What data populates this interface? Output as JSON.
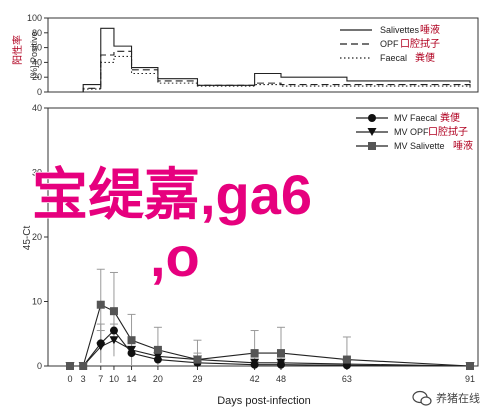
{
  "chart_data": [
    {
      "type": "line",
      "panel": "top",
      "ylabel": "[%] Positive",
      "ylabel_annotation": "阳性率",
      "ylim": [
        0,
        100
      ],
      "yticks": [
        "0",
        "20",
        "40",
        "60",
        "80",
        "100"
      ],
      "x": [
        0,
        3,
        7,
        10,
        14,
        20,
        29,
        42,
        48,
        63,
        91
      ],
      "legend_position": "top-right",
      "series": [
        {
          "name": "Salivettes",
          "annotation": "唾液",
          "style": "solid",
          "values": [
            0,
            10,
            86,
            62,
            33,
            18,
            9,
            25,
            20,
            15,
            12
          ]
        },
        {
          "name": "OPF",
          "annotation": "口腔拭子",
          "style": "dashed",
          "values": [
            0,
            5,
            50,
            55,
            30,
            15,
            9,
            12,
            10,
            10,
            8
          ]
        },
        {
          "name": "Faecal",
          "annotation": "粪便",
          "style": "dotted",
          "values": [
            0,
            4,
            40,
            48,
            25,
            12,
            8,
            10,
            8,
            8,
            5
          ]
        }
      ]
    },
    {
      "type": "line",
      "panel": "bottom",
      "ylabel": "45-Ct",
      "xlabel": "Days post-infection",
      "ylim": [
        0,
        40
      ],
      "yticks": [
        "0",
        "10",
        "20",
        "30",
        "40"
      ],
      "xticks": [
        "0",
        "3",
        "7",
        "10",
        "14",
        "20",
        "29",
        "42",
        "48",
        "63",
        "91"
      ],
      "x": [
        0,
        3,
        7,
        10,
        14,
        20,
        29,
        42,
        48,
        63,
        91
      ],
      "legend_position": "top-right",
      "series": [
        {
          "name": "MV Faecal",
          "annotation": "粪便",
          "marker": "circle",
          "values": [
            0,
            0,
            3.5,
            5.5,
            2,
            1,
            0.5,
            0.2,
            0.2,
            0.1,
            0
          ],
          "errors": [
            0,
            0,
            3,
            3,
            2,
            1,
            0.5,
            0.5,
            0.5,
            0.3,
            0
          ]
        },
        {
          "name": "MV OPF",
          "annotation": "口腔拭子",
          "marker": "triangle-down",
          "values": [
            0,
            0,
            3,
            4,
            2.5,
            1.5,
            1,
            0.5,
            0.5,
            0.3,
            0
          ],
          "errors": [
            0,
            0,
            2.5,
            2.5,
            2,
            1.2,
            1,
            0.8,
            0.8,
            0.5,
            0
          ]
        },
        {
          "name": "MV Salivette",
          "annotation": "唾液",
          "marker": "square",
          "values": [
            0,
            0,
            9.5,
            8.5,
            4,
            2.5,
            1,
            2,
            2,
            1,
            0
          ],
          "errors": [
            0,
            0,
            5.5,
            6,
            4,
            3.5,
            3,
            3.5,
            4,
            3.5,
            0
          ]
        }
      ]
    }
  ],
  "overlay": {
    "line1": "宝缇嘉,ga6",
    "line2": ",o"
  },
  "watermark": {
    "text": "养猪在线",
    "icon": "wechat-icon"
  },
  "colors": {
    "axis": "#333333",
    "series": "#222222",
    "annotation": "#b00020",
    "overlay": "#e6007e",
    "watermark": "#444444"
  }
}
